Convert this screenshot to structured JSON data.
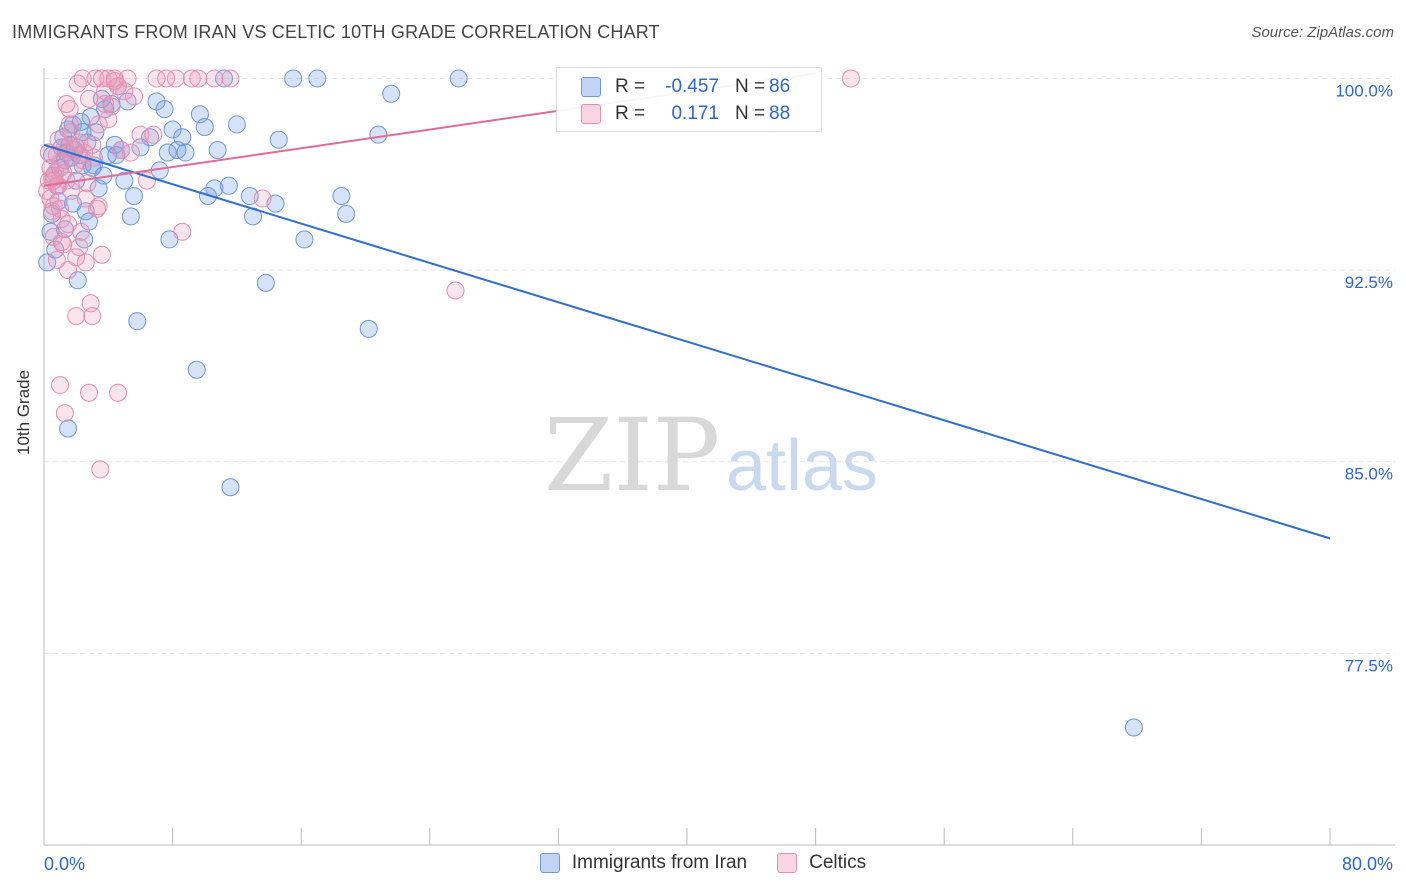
{
  "header": {
    "title": "IMMIGRANTS FROM IRAN VS CELTIC 10TH GRADE CORRELATION CHART",
    "source": "Source: ZipAtlas.com"
  },
  "watermark": {
    "zip": "ZIP",
    "atlas": "atlas"
  },
  "legend": {
    "rows": [
      {
        "r_label": "R =",
        "r_value": "-0.457",
        "n_label": "N =",
        "n_value": "86"
      },
      {
        "r_label": "R =",
        "r_value": "0.171",
        "n_label": "N =",
        "n_value": "88"
      }
    ]
  },
  "bottom_legend": {
    "items": [
      {
        "label": "Immigrants from Iran"
      },
      {
        "label": "Celtics"
      }
    ]
  },
  "colors": {
    "blue_fill": "rgba(120,160,230,0.30)",
    "blue_stroke": "#6f97dd",
    "blue_line": "#2e6fd0",
    "pink_fill": "rgba(240,150,180,0.25)",
    "pink_stroke": "#e98db0",
    "pink_line": "#e06b96",
    "tick_text": "#2e66c9",
    "grid": "#e4e4e4"
  },
  "chart_data": {
    "type": "scatter",
    "title": "IMMIGRANTS FROM IRAN VS CELTIC 10TH GRADE CORRELATION CHART",
    "xlabel": "",
    "ylabel": "10th Grade",
    "xlim": [
      0,
      80
    ],
    "ylim": [
      70,
      100.8
    ],
    "x_tick_labels": [
      "0.0%",
      "80.0%"
    ],
    "y_ticks": [
      77.5,
      85.0,
      92.5,
      100.0
    ],
    "y_tick_labels": [
      "77.5%",
      "85.0%",
      "92.5%",
      "100.0%"
    ],
    "grid": true,
    "series": [
      {
        "name": "Immigrants from Iran",
        "R": -0.457,
        "N": 86,
        "trend": {
          "x": [
            0,
            80
          ],
          "y": [
            97.4,
            82.0
          ]
        },
        "points": [
          [
            0.2,
            92.8
          ],
          [
            0.4,
            94.0
          ],
          [
            0.5,
            94.7
          ],
          [
            0.6,
            96.2
          ],
          [
            0.8,
            95.8
          ],
          [
            1.0,
            96.5
          ],
          [
            1.1,
            97.3
          ],
          [
            1.2,
            97.7
          ],
          [
            1.3,
            96.8
          ],
          [
            1.4,
            97.1
          ],
          [
            1.5,
            98.0
          ],
          [
            1.6,
            97.4
          ],
          [
            1.7,
            96.9
          ],
          [
            1.8,
            98.2
          ],
          [
            1.9,
            97.2
          ],
          [
            2.0,
            96.0
          ],
          [
            2.1,
            92.1
          ],
          [
            2.2,
            97.0
          ],
          [
            2.3,
            98.3
          ],
          [
            2.4,
            96.6
          ],
          [
            2.5,
            93.7
          ],
          [
            2.6,
            94.8
          ],
          [
            2.7,
            97.5
          ],
          [
            2.8,
            94.4
          ],
          [
            2.9,
            98.5
          ],
          [
            3.0,
            96.5
          ],
          [
            3.2,
            97.9
          ],
          [
            3.4,
            95.7
          ],
          [
            3.6,
            99.2
          ],
          [
            3.8,
            98.8
          ],
          [
            4.0,
            97.0
          ],
          [
            4.2,
            99.0
          ],
          [
            4.4,
            97.4
          ],
          [
            4.6,
            99.7
          ],
          [
            4.8,
            97.2
          ],
          [
            5.0,
            96.0
          ],
          [
            5.2,
            99.1
          ],
          [
            5.4,
            94.6
          ],
          [
            5.6,
            95.4
          ],
          [
            5.8,
            90.5
          ],
          [
            6.6,
            97.7
          ],
          [
            7.0,
            99.1
          ],
          [
            7.2,
            96.4
          ],
          [
            7.5,
            98.8
          ],
          [
            7.7,
            97.1
          ],
          [
            7.8,
            93.7
          ],
          [
            8.0,
            98.0
          ],
          [
            8.3,
            97.2
          ],
          [
            8.6,
            97.7
          ],
          [
            8.8,
            97.1
          ],
          [
            9.5,
            88.6
          ],
          [
            9.7,
            98.6
          ],
          [
            10.0,
            98.1
          ],
          [
            10.2,
            95.4
          ],
          [
            10.6,
            95.7
          ],
          [
            10.8,
            97.2
          ],
          [
            11.2,
            100.0
          ],
          [
            11.5,
            95.8
          ],
          [
            11.6,
            84.0
          ],
          [
            12.0,
            98.2
          ],
          [
            12.8,
            95.4
          ],
          [
            13.0,
            94.6
          ],
          [
            13.8,
            92.0
          ],
          [
            14.4,
            95.1
          ],
          [
            14.6,
            97.6
          ],
          [
            15.5,
            100.0
          ],
          [
            16.2,
            93.7
          ],
          [
            17.0,
            100.0
          ],
          [
            18.5,
            95.4
          ],
          [
            18.8,
            94.7
          ],
          [
            20.2,
            90.2
          ],
          [
            20.8,
            97.8
          ],
          [
            21.6,
            99.4
          ],
          [
            25.8,
            100.0
          ],
          [
            67.8,
            74.6
          ],
          [
            1.5,
            86.3
          ],
          [
            0.7,
            93.3
          ],
          [
            3.1,
            96.6
          ],
          [
            4.5,
            97.0
          ],
          [
            0.9,
            95.2
          ],
          [
            1.3,
            94.1
          ],
          [
            2.4,
            97.9
          ],
          [
            6.0,
            97.3
          ],
          [
            3.7,
            96.2
          ],
          [
            0.5,
            97.0
          ],
          [
            1.8,
            95.1
          ]
        ]
      },
      {
        "name": "Celtics",
        "R": 0.171,
        "N": 88,
        "trend": {
          "x": [
            0,
            48
          ],
          "y": [
            95.8,
            100.2
          ]
        },
        "points": [
          [
            0.2,
            95.6
          ],
          [
            0.3,
            96.0
          ],
          [
            0.4,
            95.3
          ],
          [
            0.5,
            94.8
          ],
          [
            0.6,
            93.8
          ],
          [
            0.7,
            96.3
          ],
          [
            0.8,
            97.0
          ],
          [
            0.9,
            95.8
          ],
          [
            1.0,
            96.7
          ],
          [
            1.1,
            94.5
          ],
          [
            1.2,
            93.5
          ],
          [
            1.3,
            97.3
          ],
          [
            1.4,
            96.0
          ],
          [
            1.5,
            92.5
          ],
          [
            1.6,
            98.2
          ],
          [
            1.7,
            95.6
          ],
          [
            1.8,
            97.2
          ],
          [
            1.9,
            96.6
          ],
          [
            2.0,
            93.0
          ],
          [
            2.1,
            99.8
          ],
          [
            2.2,
            97.5
          ],
          [
            2.3,
            94.0
          ],
          [
            2.4,
            100.0
          ],
          [
            2.5,
            97.1
          ],
          [
            2.6,
            92.8
          ],
          [
            2.7,
            95.9
          ],
          [
            2.8,
            87.7
          ],
          [
            2.9,
            91.2
          ],
          [
            3.0,
            90.7
          ],
          [
            3.1,
            96.9
          ],
          [
            3.2,
            100.0
          ],
          [
            3.3,
            94.9
          ],
          [
            3.4,
            98.2
          ],
          [
            3.5,
            84.7
          ],
          [
            3.6,
            100.0
          ],
          [
            3.8,
            99.5
          ],
          [
            4.0,
            100.0
          ],
          [
            4.2,
            98.9
          ],
          [
            4.4,
            100.0
          ],
          [
            4.6,
            87.7
          ],
          [
            4.8,
            97.2
          ],
          [
            5.0,
            99.5
          ],
          [
            5.2,
            100.0
          ],
          [
            5.6,
            99.3
          ],
          [
            6.0,
            97.8
          ],
          [
            6.4,
            96.0
          ],
          [
            7.0,
            100.0
          ],
          [
            7.6,
            100.0
          ],
          [
            8.2,
            100.0
          ],
          [
            8.6,
            94.0
          ],
          [
            9.2,
            100.0
          ],
          [
            9.6,
            100.0
          ],
          [
            10.6,
            100.0
          ],
          [
            11.6,
            100.0
          ],
          [
            13.6,
            95.3
          ],
          [
            25.6,
            91.7
          ],
          [
            50.2,
            100.0
          ],
          [
            1.0,
            88.0
          ],
          [
            1.3,
            86.9
          ],
          [
            2.0,
            90.7
          ],
          [
            0.5,
            96.1
          ],
          [
            0.6,
            95.0
          ],
          [
            0.9,
            97.6
          ],
          [
            1.1,
            93.6
          ],
          [
            1.4,
            99.0
          ],
          [
            1.7,
            97.9
          ],
          [
            2.2,
            93.4
          ],
          [
            2.6,
            95.3
          ],
          [
            3.0,
            97.4
          ],
          [
            3.4,
            95.0
          ],
          [
            4.0,
            98.4
          ],
          [
            4.6,
            99.7
          ],
          [
            5.4,
            97.1
          ],
          [
            6.8,
            97.8
          ],
          [
            0.8,
            92.9
          ],
          [
            1.2,
            96.3
          ],
          [
            1.6,
            98.8
          ],
          [
            2.4,
            96.8
          ],
          [
            3.8,
            99.0
          ],
          [
            0.4,
            96.5
          ],
          [
            0.6,
            96.0
          ],
          [
            1.0,
            94.9
          ],
          [
            1.5,
            94.3
          ],
          [
            2.0,
            97.3
          ],
          [
            2.8,
            99.2
          ],
          [
            3.6,
            93.1
          ],
          [
            4.4,
            99.9
          ],
          [
            0.3,
            97.1
          ]
        ]
      }
    ]
  }
}
